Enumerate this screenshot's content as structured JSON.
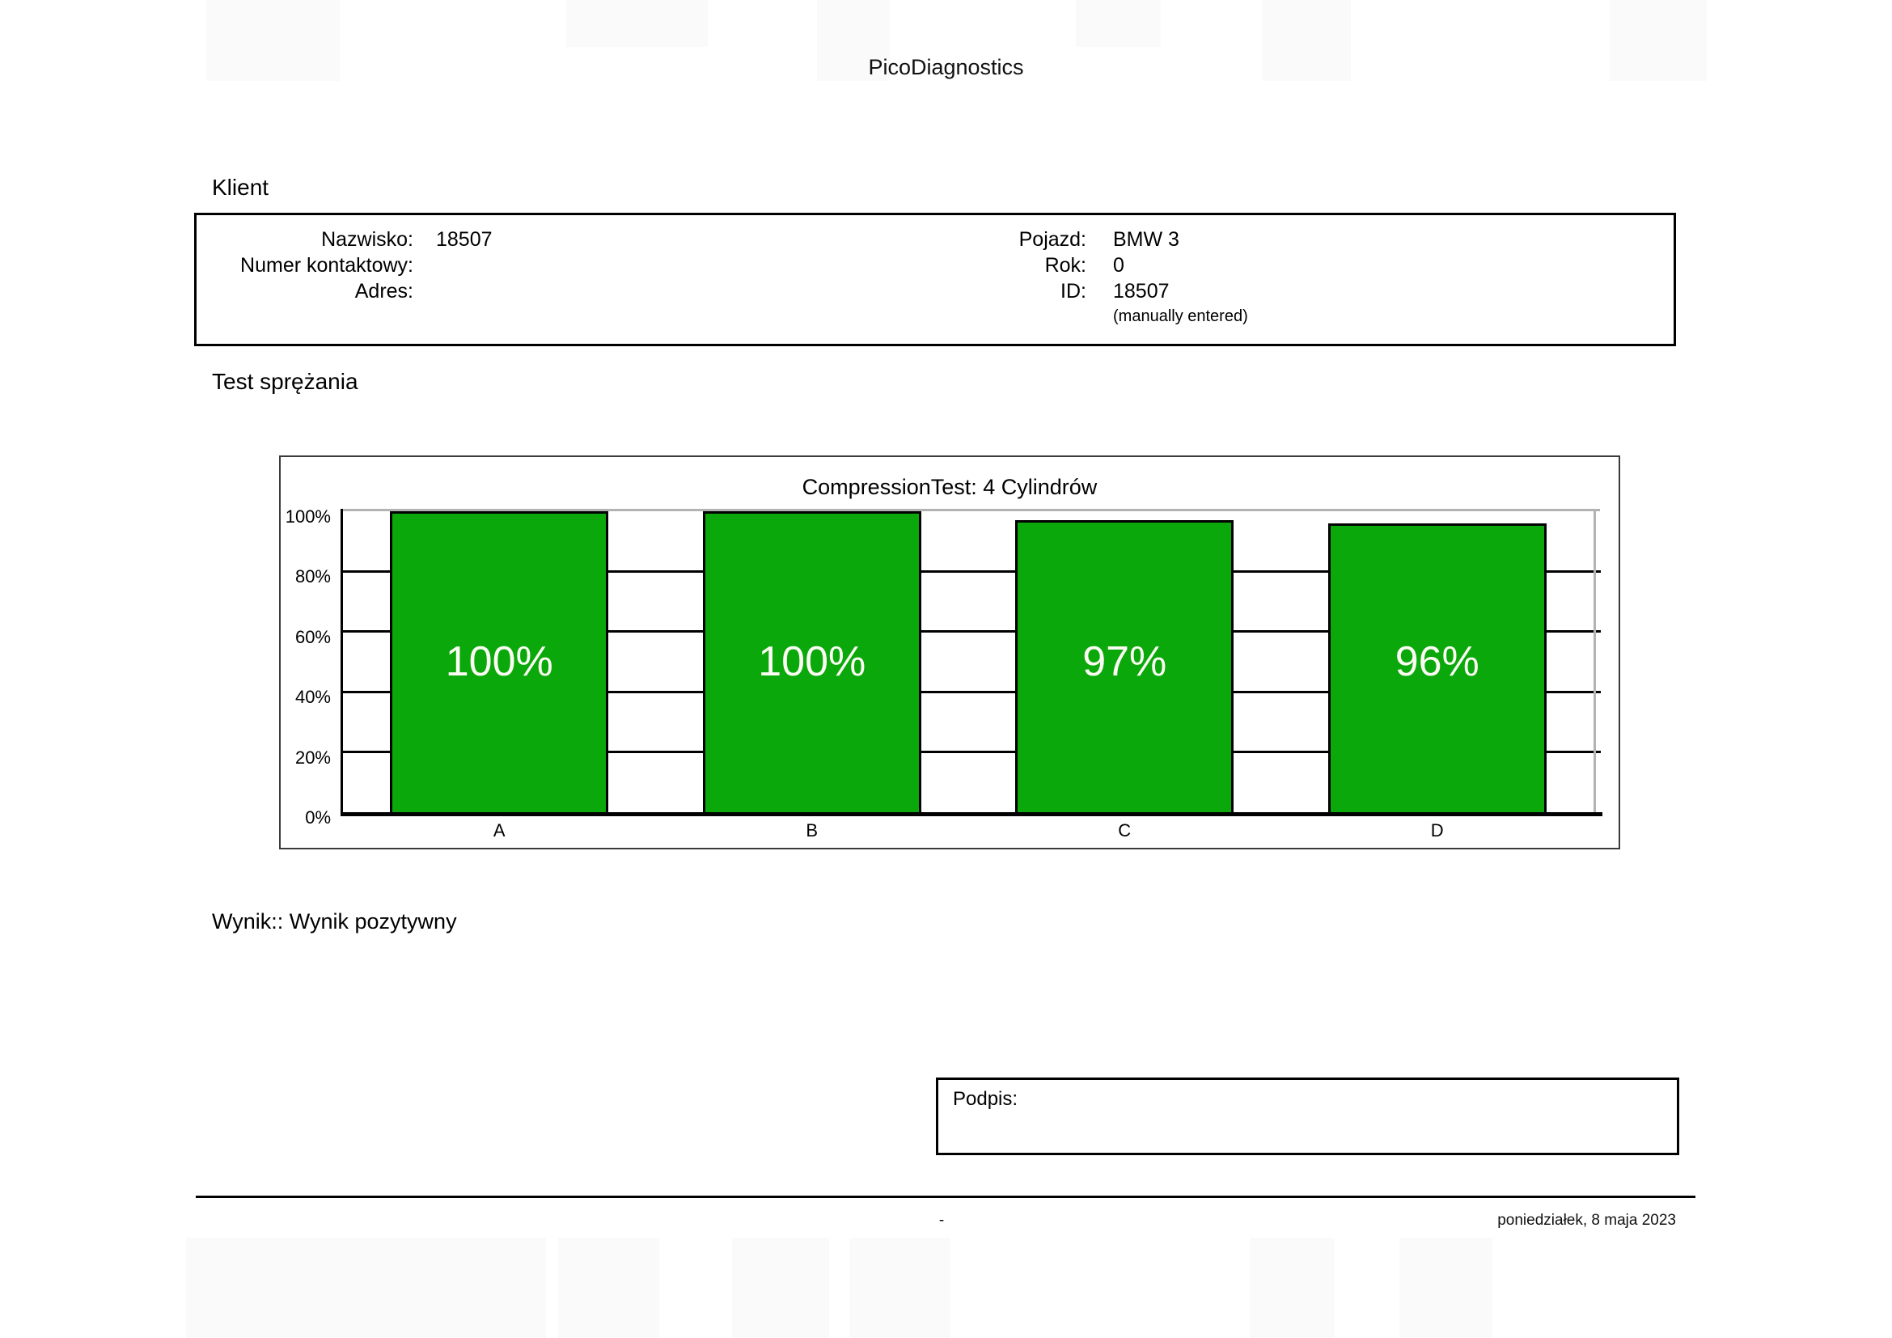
{
  "page": {
    "title": "PicoDiagnostics",
    "footer": {
      "center": "-",
      "date": "poniedziałek, 8 maja 2023"
    }
  },
  "client": {
    "heading": "Klient",
    "left_fields": [
      {
        "label": "Nazwisko:",
        "value": "18507"
      },
      {
        "label": "Numer kontaktowy:",
        "value": ""
      },
      {
        "label": "Adres:",
        "value": ""
      }
    ],
    "right_fields": [
      {
        "label": "Pojazd:",
        "value": "BMW 3"
      },
      {
        "label": "Rok:",
        "value": "0"
      },
      {
        "label": "ID:",
        "value": "18507"
      }
    ],
    "right_note": "(manually entered)"
  },
  "section": {
    "heading": "Test sprężania"
  },
  "result": {
    "text": "Wynik:: Wynik pozytywny"
  },
  "signature": {
    "label": "Podpis:"
  },
  "chart_data": {
    "type": "bar",
    "title": "CompressionTest: 4 Cylindrów",
    "categories": [
      "A",
      "B",
      "C",
      "D"
    ],
    "values": [
      100,
      100,
      97,
      96
    ],
    "bar_labels": [
      "100%",
      "100%",
      "97%",
      "96%"
    ],
    "ylim": [
      0,
      100
    ],
    "yticks": [
      0,
      20,
      40,
      60,
      80,
      100
    ],
    "ytick_labels": [
      "0%",
      "20%",
      "40%",
      "60%",
      "80%",
      "100%"
    ],
    "grid": true,
    "legend": "none",
    "bar_color": "#0aa80a",
    "bar_border_color": "#000000",
    "axis_color": "#000000",
    "plot_frame_color": "#b3b3b3"
  }
}
